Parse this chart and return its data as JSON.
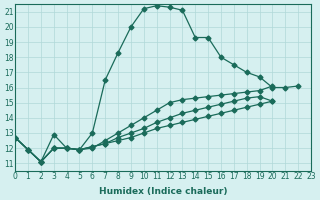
{
  "xlabel": "Humidex (Indice chaleur)",
  "bg_color": "#d6f0f0",
  "grid_color": "#b0d8d8",
  "line_color": "#1a6b5a",
  "xlim": [
    0,
    23
  ],
  "ylim": [
    10.5,
    21.5
  ],
  "xticks": [
    0,
    1,
    2,
    3,
    4,
    5,
    6,
    7,
    8,
    9,
    10,
    11,
    12,
    13,
    14,
    15,
    16,
    17,
    18,
    19,
    20,
    21,
    22,
    23
  ],
  "yticks": [
    11,
    12,
    13,
    14,
    15,
    16,
    17,
    18,
    19,
    20,
    21
  ],
  "series": [
    [
      12.7,
      11.9,
      11.1,
      12.9,
      12.0,
      11.9,
      13.0,
      16.5,
      18.3,
      20.0,
      21.2,
      21.4,
      21.3,
      21.1,
      19.3,
      19.3,
      18.0,
      17.5,
      17.0,
      16.7,
      16.0,
      16.0,
      16.1
    ],
    [
      12.7,
      11.9,
      11.1,
      12.0,
      12.0,
      11.9,
      12.0,
      12.5,
      13.0,
      13.5,
      14.0,
      14.5,
      15.0,
      15.2,
      15.3,
      15.4,
      15.5,
      15.6,
      15.7,
      15.8,
      16.1
    ],
    [
      12.7,
      11.9,
      11.1,
      12.0,
      12.0,
      11.9,
      12.1,
      12.3,
      12.7,
      13.0,
      13.3,
      13.7,
      14.0,
      14.3,
      14.5,
      14.7,
      14.9,
      15.1,
      15.3,
      15.4,
      15.1
    ],
    [
      12.7,
      11.9,
      11.1,
      12.0,
      12.0,
      11.9,
      12.1,
      12.3,
      12.5,
      12.7,
      13.0,
      13.3,
      13.5,
      13.7,
      13.9,
      14.1,
      14.3,
      14.5,
      14.7,
      14.9,
      15.1
    ]
  ],
  "series_x": [
    [
      0,
      1,
      2,
      3,
      4,
      5,
      6,
      7,
      8,
      9,
      10,
      11,
      12,
      13,
      14,
      15,
      16,
      17,
      18,
      19,
      20,
      21,
      22
    ],
    [
      0,
      1,
      2,
      3,
      4,
      5,
      6,
      7,
      8,
      9,
      10,
      11,
      12,
      13,
      14,
      15,
      16,
      17,
      18,
      19,
      20
    ],
    [
      0,
      1,
      2,
      3,
      4,
      5,
      6,
      7,
      8,
      9,
      10,
      11,
      12,
      13,
      14,
      15,
      16,
      17,
      18,
      19,
      20
    ],
    [
      0,
      1,
      2,
      3,
      4,
      5,
      6,
      7,
      8,
      9,
      10,
      11,
      12,
      13,
      14,
      15,
      16,
      17,
      18,
      19,
      20
    ]
  ]
}
